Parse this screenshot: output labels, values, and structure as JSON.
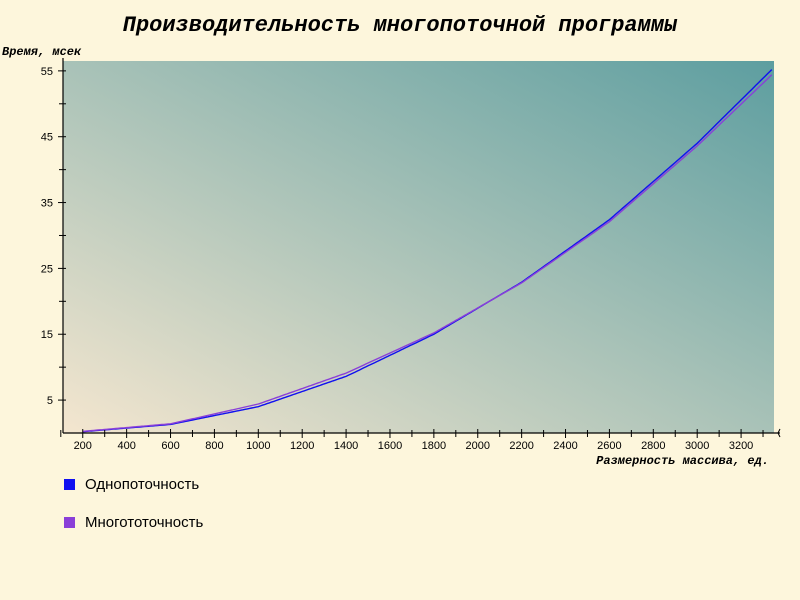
{
  "colors": {
    "background": "#fdf6dc",
    "plot_gradient_start": "#f4e6cf",
    "plot_gradient_end": "#5d9ea0",
    "axis": "#000000"
  },
  "chart_data": {
    "type": "line",
    "title": "Производительность многопоточной программы",
    "xlabel": "Размерность массива, ед.",
    "ylabel": "Время, мсек",
    "xlim": [
      110,
      3350
    ],
    "ylim": [
      0,
      56.5
    ],
    "x_ticks": [
      200,
      400,
      600,
      800,
      1000,
      1200,
      1400,
      1600,
      1800,
      2000,
      2200,
      2400,
      2600,
      2800,
      3000,
      3200
    ],
    "x_minor_ticks": [
      100,
      300,
      500,
      700,
      900,
      1100,
      1300,
      1500,
      1700,
      1900,
      2100,
      2300,
      2500,
      2700,
      2900,
      3100,
      3300
    ],
    "y_ticks": [
      5,
      15,
      25,
      35,
      45,
      55
    ],
    "y_minor_ticks": [
      10,
      20,
      30,
      40,
      50
    ],
    "grid": false,
    "legend_position": "bottom-left",
    "series": [
      {
        "name": "Однопоточность",
        "color": "#1010f0",
        "x": [
          200,
          600,
          1000,
          1400,
          1800,
          2200,
          2600,
          3000,
          3340
        ],
        "y": [
          0.2,
          1.3,
          4.0,
          8.6,
          15.0,
          22.9,
          32.4,
          44.0,
          55.2
        ]
      },
      {
        "name": "Многототочность",
        "color": "#8a3fd8",
        "x": [
          200,
          600,
          1000,
          1400,
          1800,
          2200,
          2600,
          3000,
          3340
        ],
        "y": [
          0.25,
          1.4,
          4.4,
          9.1,
          15.2,
          22.8,
          32.1,
          43.6,
          54.4
        ]
      }
    ]
  }
}
